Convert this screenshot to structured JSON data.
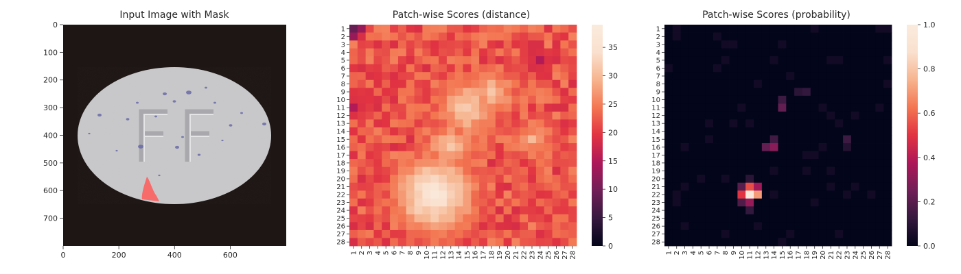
{
  "colors": {
    "mask_overlay": "#ff5a5a",
    "image_background": "#1e1614",
    "pill": "#c8c8ca",
    "speckle": "#6a6aa8",
    "colormap": "rocket"
  },
  "chart_data": [
    {
      "type": "image",
      "title": "Input Image with Mask",
      "xticks": [
        "0",
        "200",
        "400",
        "600"
      ],
      "yticks": [
        "0",
        "100",
        "200",
        "300",
        "400",
        "500",
        "600",
        "700"
      ],
      "xlim": [
        0,
        800
      ],
      "ylim": [
        800,
        0
      ],
      "content": "gray pill with embossed FF letters and blue speckles",
      "embossed_text": "FF",
      "mask": {
        "region": "red defect at lower-left edge of pill",
        "x_range": [
          285,
          335
        ],
        "y_range": [
          555,
          635
        ]
      }
    },
    {
      "type": "heatmap",
      "title": "Patch-wise Scores (distance)",
      "rows": 28,
      "cols": 28,
      "row_labels": [
        "1",
        "2",
        "3",
        "4",
        "5",
        "6",
        "7",
        "8",
        "9",
        "10",
        "11",
        "12",
        "13",
        "14",
        "15",
        "16",
        "17",
        "18",
        "19",
        "20",
        "21",
        "22",
        "23",
        "24",
        "25",
        "26",
        "27",
        "28"
      ],
      "col_labels": [
        "1",
        "2",
        "3",
        "4",
        "5",
        "6",
        "7",
        "8",
        "9",
        "10",
        "11",
        "12",
        "13",
        "14",
        "15",
        "16",
        "17",
        "18",
        "19",
        "20",
        "21",
        "22",
        "23",
        "24",
        "25",
        "26",
        "27",
        "28"
      ],
      "colorbar": {
        "min": 0,
        "max": 39,
        "ticks": [
          "0",
          "5",
          "10",
          "15",
          "20",
          "25",
          "30",
          "35"
        ]
      },
      "background_level": 22,
      "peaks": [
        {
          "row": 22,
          "col": 11,
          "value": 38
        },
        {
          "row": 11,
          "col": 15,
          "value": 33
        },
        {
          "row": 9,
          "col": 18,
          "value": 31
        },
        {
          "row": 16,
          "col": 13,
          "value": 31
        },
        {
          "row": 15,
          "col": 23,
          "value": 29
        }
      ],
      "low_spots": [
        {
          "row": 1,
          "col": 1,
          "value": 9
        },
        {
          "row": 5,
          "col": 24,
          "value": 15
        },
        {
          "row": 11,
          "col": 1,
          "value": 15
        }
      ]
    },
    {
      "type": "heatmap",
      "title": "Patch-wise Scores (probability)",
      "rows": 28,
      "cols": 28,
      "row_labels": [
        "1",
        "2",
        "3",
        "4",
        "5",
        "6",
        "7",
        "8",
        "9",
        "10",
        "11",
        "12",
        "13",
        "14",
        "15",
        "16",
        "17",
        "18",
        "19",
        "20",
        "21",
        "22",
        "23",
        "24",
        "25",
        "26",
        "27",
        "28"
      ],
      "col_labels": [
        "1",
        "2",
        "3",
        "4",
        "5",
        "6",
        "7",
        "8",
        "9",
        "10",
        "11",
        "12",
        "13",
        "14",
        "15",
        "16",
        "17",
        "18",
        "19",
        "20",
        "21",
        "22",
        "23",
        "24",
        "25",
        "26",
        "27",
        "28"
      ],
      "colorbar": {
        "min": 0.0,
        "max": 1.0,
        "ticks": [
          "0.0",
          "0.2",
          "0.4",
          "0.6",
          "0.8",
          "1.0"
        ]
      },
      "background_level": 0.0,
      "cells": [
        {
          "row": 22,
          "col": 11,
          "value": 0.98
        },
        {
          "row": 22,
          "col": 12,
          "value": 0.7
        },
        {
          "row": 21,
          "col": 11,
          "value": 0.55
        },
        {
          "row": 22,
          "col": 10,
          "value": 0.5
        },
        {
          "row": 21,
          "col": 12,
          "value": 0.35
        },
        {
          "row": 23,
          "col": 11,
          "value": 0.33
        },
        {
          "row": 23,
          "col": 10,
          "value": 0.18
        },
        {
          "row": 21,
          "col": 10,
          "value": 0.2
        },
        {
          "row": 24,
          "col": 11,
          "value": 0.12
        },
        {
          "row": 20,
          "col": 11,
          "value": 0.1
        },
        {
          "row": 16,
          "col": 14,
          "value": 0.3
        },
        {
          "row": 16,
          "col": 13,
          "value": 0.22
        },
        {
          "row": 15,
          "col": 14,
          "value": 0.15
        },
        {
          "row": 11,
          "col": 15,
          "value": 0.22
        },
        {
          "row": 10,
          "col": 15,
          "value": 0.14
        },
        {
          "row": 9,
          "col": 18,
          "value": 0.12
        },
        {
          "row": 9,
          "col": 17,
          "value": 0.1
        },
        {
          "row": 15,
          "col": 23,
          "value": 0.14
        },
        {
          "row": 16,
          "col": 23,
          "value": 0.08
        }
      ]
    }
  ]
}
